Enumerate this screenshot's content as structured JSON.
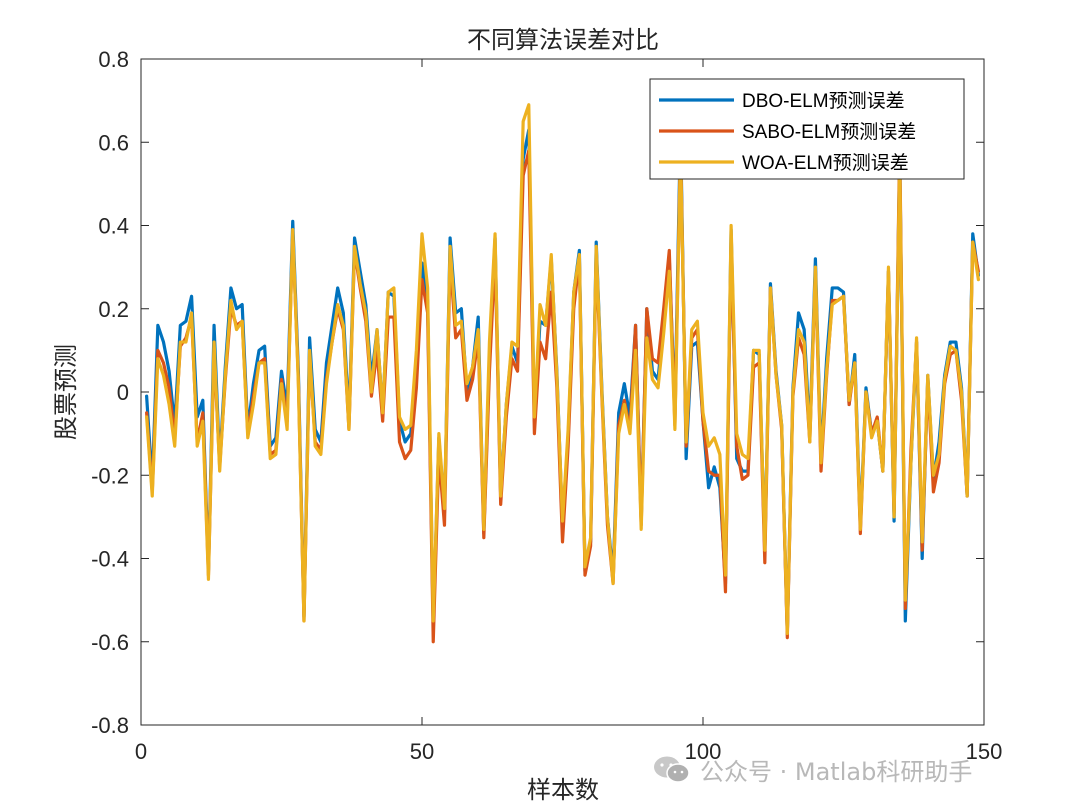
{
  "chart_data": {
    "type": "line",
    "title": "不同算法误差对比",
    "xlabel": "样本数",
    "ylabel": "股票预测",
    "xlim": [
      0,
      150
    ],
    "ylim": [
      -0.8,
      0.8
    ],
    "xticks": [
      0,
      50,
      100,
      150
    ],
    "yticks": [
      -0.8,
      -0.6,
      -0.4,
      -0.2,
      0,
      0.2,
      0.4,
      0.6,
      0.8
    ],
    "grid": false,
    "legend_position": "top-right",
    "series": [
      {
        "name": "DBO-ELM预测误差",
        "color": "#0072BD",
        "values": [
          -0.01,
          -0.22,
          0.16,
          0.12,
          0.05,
          -0.08,
          0.16,
          0.17,
          0.23,
          -0.06,
          -0.02,
          -0.43,
          0.16,
          -0.17,
          0.06,
          0.25,
          0.2,
          0.21,
          -0.09,
          0.02,
          0.1,
          0.11,
          -0.13,
          -0.11,
          0.05,
          -0.04,
          0.41,
          0.05,
          -0.54,
          0.13,
          -0.09,
          -0.12,
          0.07,
          0.16,
          0.25,
          0.19,
          -0.07,
          0.37,
          0.29,
          0.21,
          0.03,
          0.15,
          -0.05,
          0.24,
          0.23,
          -0.07,
          -0.12,
          -0.1,
          0.05,
          0.31,
          0.22,
          -0.56,
          -0.11,
          -0.29,
          0.37,
          0.19,
          0.2,
          0.0,
          0.06,
          0.18,
          -0.34,
          0.08,
          0.37,
          -0.25,
          -0.03,
          0.11,
          0.07,
          0.56,
          0.63,
          -0.07,
          0.17,
          0.16,
          0.32,
          0.05,
          -0.32,
          -0.11,
          0.24,
          0.34,
          -0.43,
          -0.36,
          0.36,
          0.01,
          -0.3,
          -0.44,
          -0.05,
          0.02,
          -0.06,
          0.16,
          -0.31,
          0.2,
          0.05,
          0.03,
          0.17,
          0.32,
          -0.05,
          0.64,
          -0.16,
          0.11,
          0.12,
          -0.07,
          -0.23,
          -0.18,
          -0.23,
          -0.46,
          0.39,
          -0.16,
          -0.19,
          -0.19,
          0.1,
          0.09,
          -0.38,
          0.26,
          0.05,
          -0.08,
          -0.58,
          0.01,
          0.19,
          0.15,
          -0.1,
          0.32,
          -0.16,
          0.08,
          0.25,
          0.25,
          0.24,
          -0.03,
          0.09,
          -0.32,
          0.01,
          -0.1,
          -0.07,
          -0.19,
          0.29,
          -0.31,
          0.58,
          -0.55,
          -0.17,
          0.12,
          -0.4,
          0.04,
          -0.21,
          -0.12,
          0.04,
          0.12,
          0.12,
          0.01,
          -0.25,
          0.38,
          0.28
        ]
      },
      {
        "name": "SABO-ELM预测误差",
        "color": "#D95319",
        "values": [
          -0.05,
          -0.24,
          0.1,
          0.07,
          0.01,
          -0.11,
          0.11,
          0.13,
          0.18,
          -0.12,
          -0.05,
          -0.44,
          0.1,
          -0.18,
          0.03,
          0.2,
          0.16,
          0.17,
          -0.1,
          -0.01,
          0.07,
          0.08,
          -0.15,
          -0.14,
          0.03,
          -0.07,
          0.38,
          0.03,
          -0.55,
          0.09,
          -0.12,
          -0.14,
          0.03,
          0.12,
          0.2,
          0.15,
          -0.09,
          0.34,
          0.25,
          0.17,
          -0.01,
          0.1,
          -0.07,
          0.18,
          0.18,
          -0.12,
          -0.16,
          -0.14,
          0.01,
          0.27,
          0.19,
          -0.6,
          -0.15,
          -0.32,
          0.32,
          0.13,
          0.15,
          -0.02,
          0.03,
          0.13,
          -0.35,
          0.05,
          0.33,
          -0.27,
          -0.06,
          0.08,
          0.05,
          0.52,
          0.58,
          -0.1,
          0.12,
          0.08,
          0.24,
          0.01,
          -0.36,
          -0.13,
          0.2,
          0.32,
          -0.44,
          -0.37,
          0.33,
          -0.01,
          -0.32,
          -0.46,
          -0.08,
          -0.02,
          -0.09,
          0.16,
          -0.32,
          0.2,
          0.08,
          0.07,
          0.2,
          0.34,
          -0.08,
          0.6,
          -0.13,
          0.13,
          0.15,
          -0.07,
          -0.19,
          -0.2,
          -0.2,
          -0.48,
          0.36,
          -0.13,
          -0.21,
          -0.2,
          0.06,
          0.07,
          -0.41,
          0.25,
          0.04,
          -0.09,
          -0.59,
          -0.01,
          0.13,
          0.09,
          -0.12,
          0.29,
          -0.19,
          0.04,
          0.22,
          0.22,
          0.23,
          -0.03,
          0.07,
          -0.34,
          0.0,
          -0.1,
          -0.06,
          -0.19,
          0.29,
          -0.29,
          0.6,
          -0.52,
          -0.14,
          0.12,
          -0.38,
          0.03,
          -0.24,
          -0.17,
          0.02,
          0.09,
          0.1,
          -0.02,
          -0.25,
          0.36,
          0.29
        ]
      },
      {
        "name": "WOA-ELM预测误差",
        "color": "#EDB120",
        "values": [
          -0.06,
          -0.25,
          0.08,
          0.04,
          -0.03,
          -0.13,
          0.12,
          0.12,
          0.19,
          -0.13,
          -0.07,
          -0.45,
          0.12,
          -0.19,
          0.04,
          0.22,
          0.15,
          0.17,
          -0.11,
          -0.03,
          0.07,
          0.07,
          -0.16,
          -0.15,
          0.02,
          -0.09,
          0.39,
          0.02,
          -0.55,
          0.1,
          -0.13,
          -0.15,
          0.02,
          0.12,
          0.21,
          0.16,
          -0.09,
          0.35,
          0.26,
          0.19,
          0.0,
          0.15,
          -0.05,
          0.24,
          0.25,
          -0.06,
          -0.09,
          -0.08,
          0.1,
          0.38,
          0.25,
          -0.55,
          -0.1,
          -0.28,
          0.35,
          0.16,
          0.17,
          0.02,
          0.06,
          0.15,
          -0.33,
          0.12,
          0.38,
          -0.25,
          -0.03,
          0.12,
          0.11,
          0.65,
          0.69,
          -0.06,
          0.21,
          0.16,
          0.33,
          0.04,
          -0.31,
          -0.09,
          0.24,
          0.33,
          -0.42,
          -0.35,
          0.35,
          0.0,
          -0.3,
          -0.46,
          -0.1,
          -0.03,
          -0.1,
          0.1,
          -0.33,
          0.13,
          0.03,
          0.01,
          0.14,
          0.29,
          -0.09,
          0.58,
          -0.12,
          0.15,
          0.17,
          -0.05,
          -0.13,
          -0.11,
          -0.15,
          -0.44,
          0.4,
          -0.1,
          -0.15,
          -0.16,
          0.1,
          0.1,
          -0.38,
          0.25,
          0.04,
          -0.08,
          -0.58,
          0.0,
          0.15,
          0.12,
          -0.12,
          0.3,
          -0.17,
          0.05,
          0.21,
          0.22,
          0.23,
          -0.02,
          0.07,
          -0.33,
          0.0,
          -0.11,
          -0.07,
          -0.19,
          0.3,
          -0.3,
          0.56,
          -0.5,
          -0.17,
          0.13,
          -0.36,
          0.04,
          -0.2,
          -0.15,
          0.03,
          0.11,
          0.1,
          0.0,
          -0.25,
          0.36,
          0.27
        ]
      }
    ]
  },
  "watermark": {
    "text": "公众号 · Matlab科研助手",
    "icon": "wechat-icon",
    "color": "#b8b8b8"
  }
}
